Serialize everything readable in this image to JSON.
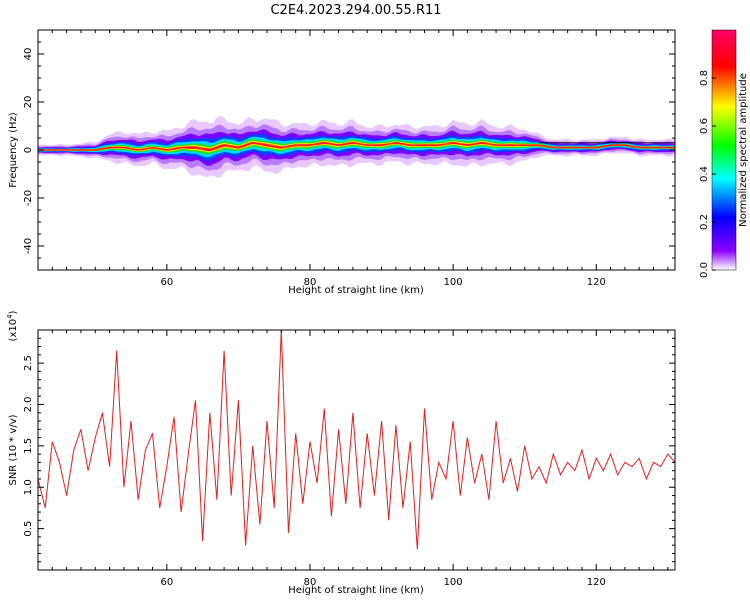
{
  "title": "C2E4.2023.294.00.55.R11",
  "colors": {
    "snr_line": "#e02020",
    "axis": "#000000",
    "background": "#ffffff"
  },
  "chart_data": [
    {
      "type": "heatmap",
      "name": "spectrogram",
      "xlabel": "Height of straight line (km)",
      "ylabel": "Frequency (Hz)",
      "xlim": [
        42,
        131
      ],
      "ylim": [
        -50,
        50
      ],
      "x_ticks": [
        60,
        80,
        100,
        120
      ],
      "x_tick_labels": [
        "60",
        "80",
        "100",
        "120"
      ],
      "y_ticks": [
        -40,
        -20,
        0,
        20,
        40
      ],
      "y_tick_labels": [
        "-40",
        "-20",
        "0",
        "20",
        "40"
      ],
      "ridge": {
        "x": [
          43,
          46,
          50,
          52,
          54,
          56,
          58,
          60,
          62,
          64,
          66,
          68,
          70,
          72,
          74,
          76,
          78,
          80,
          82,
          84,
          86,
          88,
          90,
          92,
          94,
          96,
          98,
          100,
          102,
          104,
          106,
          108,
          110,
          112,
          114,
          116,
          118,
          120,
          122,
          124,
          126,
          128,
          130
        ],
        "y": [
          0,
          0,
          0,
          1,
          1,
          0,
          1,
          0,
          1,
          1,
          0,
          2,
          1,
          3,
          2,
          1,
          2,
          2,
          3,
          2,
          3,
          2,
          2,
          3,
          2,
          2,
          2,
          3,
          2,
          3,
          2,
          2,
          2,
          2,
          1,
          1,
          1,
          1,
          2,
          2,
          1,
          1,
          1
        ],
        "spread": [
          1,
          1,
          1.5,
          2.5,
          3,
          3,
          3,
          3.5,
          4,
          5,
          5.5,
          5,
          4.5,
          4.5,
          5,
          4.5,
          4,
          4,
          4,
          4,
          4,
          3.5,
          3.5,
          3.5,
          3.5,
          3.5,
          3.5,
          4,
          4,
          4,
          3.5,
          3.5,
          3,
          2,
          1.5,
          1.5,
          1.5,
          1.5,
          1.5,
          1.5,
          1.5,
          1.5,
          1.5
        ]
      }
    },
    {
      "type": "colorbar",
      "label": "Normalized spectral amplitude",
      "range": [
        0,
        1
      ],
      "ticks": [
        0,
        0.2,
        0.4,
        0.6,
        0.8
      ],
      "tick_labels": [
        "0.0",
        "0.2",
        "0.4",
        "0.6",
        "0.8"
      ],
      "colormap": [
        "#ffffff",
        "#8c00ff",
        "#0000ff",
        "#00ffff",
        "#00ff00",
        "#ffff00",
        "#ff0000",
        "#ff0066"
      ]
    },
    {
      "type": "line",
      "name": "snr",
      "xlabel": "Height of straight line (km)",
      "ylabel": "SNR (10 * v/v)",
      "y_multiplier_label": "(x10",
      "y_multiplier_exp": "4",
      "xlim": [
        42,
        131
      ],
      "ylim": [
        0,
        29000
      ],
      "x_ticks": [
        60,
        80,
        100,
        120
      ],
      "x_tick_labels": [
        "60",
        "80",
        "100",
        "120"
      ],
      "y_ticks": [
        5000,
        10000,
        15000,
        20000,
        25000
      ],
      "y_tick_labels": [
        "0.5",
        "1.0",
        "1.5",
        "2.0",
        "2.5"
      ],
      "x": [
        42,
        43,
        44,
        45,
        46,
        47,
        48,
        49,
        50,
        51,
        52,
        53,
        54,
        55,
        56,
        57,
        58,
        59,
        60,
        61,
        62,
        63,
        64,
        65,
        66,
        67,
        68,
        69,
        70,
        71,
        72,
        73,
        74,
        75,
        76,
        77,
        78,
        79,
        80,
        81,
        82,
        83,
        84,
        85,
        86,
        87,
        88,
        89,
        90,
        91,
        92,
        93,
        94,
        95,
        96,
        97,
        98,
        99,
        100,
        101,
        102,
        103,
        104,
        105,
        106,
        107,
        108,
        109,
        110,
        111,
        112,
        113,
        114,
        115,
        116,
        117,
        118,
        119,
        120,
        121,
        122,
        123,
        124,
        125,
        126,
        127,
        128,
        129,
        130,
        131
      ],
      "y": [
        11000,
        7500,
        15500,
        13000,
        9000,
        14500,
        17000,
        12000,
        16000,
        19000,
        12500,
        26500,
        10000,
        18000,
        8500,
        14500,
        16500,
        7500,
        12500,
        18500,
        7000,
        14000,
        20500,
        3500,
        19000,
        8500,
        26500,
        9000,
        20500,
        3000,
        15000,
        5500,
        18000,
        7500,
        29000,
        4500,
        16500,
        8000,
        15500,
        10500,
        19500,
        6500,
        17000,
        8000,
        19000,
        7500,
        16500,
        9000,
        18000,
        6000,
        17500,
        7500,
        15500,
        2500,
        19500,
        8500,
        13000,
        11000,
        18000,
        9000,
        16000,
        10500,
        14000,
        8500,
        18000,
        10500,
        13500,
        9500,
        15000,
        11000,
        12500,
        10500,
        14000,
        11500,
        13000,
        12000,
        14500,
        11000,
        13500,
        12000,
        14000,
        11500,
        13000,
        12500,
        13500,
        11000,
        13000,
        12500,
        14000,
        13000
      ]
    }
  ]
}
